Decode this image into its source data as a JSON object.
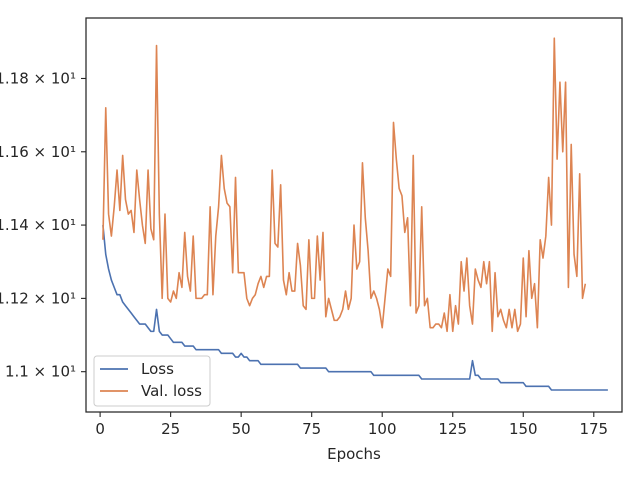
{
  "chart_data": {
    "type": "line",
    "title": "",
    "xlabel": "Epochs",
    "ylabel": "",
    "xlim": [
      -5,
      185
    ],
    "ylim": [
      10.89,
      11.965
    ],
    "grid": false,
    "legend_position": "bottom-left",
    "x_ticks": [
      0,
      25,
      50,
      75,
      100,
      125,
      150,
      175
    ],
    "x_tick_labels": [
      "0",
      "25",
      "50",
      "75",
      "100",
      "125",
      "150",
      "175"
    ],
    "y_ticks": [
      11.0,
      11.2,
      11.4,
      11.6,
      11.8
    ],
    "y_tick_labels": [
      "1.1 × 10¹",
      "1.12 × 10¹",
      "1.14 × 10¹",
      "1.16 × 10¹",
      "1.18 × 10¹"
    ],
    "series": [
      {
        "name": "Loss",
        "color": "#4c72b0",
        "x_start": 1,
        "x_step": 1,
        "values": [
          11.4,
          11.32,
          11.28,
          11.25,
          11.23,
          11.21,
          11.21,
          11.19,
          11.18,
          11.17,
          11.16,
          11.15,
          11.14,
          11.13,
          11.13,
          11.13,
          11.12,
          11.11,
          11.11,
          11.17,
          11.11,
          11.1,
          11.1,
          11.1,
          11.09,
          11.08,
          11.08,
          11.08,
          11.08,
          11.07,
          11.07,
          11.07,
          11.07,
          11.06,
          11.06,
          11.06,
          11.06,
          11.06,
          11.06,
          11.06,
          11.06,
          11.06,
          11.05,
          11.05,
          11.05,
          11.05,
          11.05,
          11.04,
          11.04,
          11.05,
          11.04,
          11.04,
          11.03,
          11.03,
          11.03,
          11.03,
          11.02,
          11.02,
          11.02,
          11.02,
          11.02,
          11.02,
          11.02,
          11.02,
          11.02,
          11.02,
          11.02,
          11.02,
          11.02,
          11.02,
          11.01,
          11.01,
          11.01,
          11.01,
          11.01,
          11.01,
          11.01,
          11.01,
          11.01,
          11.01,
          11.0,
          11.0,
          11.0,
          11.0,
          11.0,
          11.0,
          11.0,
          11.0,
          11.0,
          11.0,
          11.0,
          11.0,
          11.0,
          11.0,
          11.0,
          11.0,
          10.99,
          10.99,
          10.99,
          10.99,
          10.99,
          10.99,
          10.99,
          10.99,
          10.99,
          10.99,
          10.99,
          10.99,
          10.99,
          10.99,
          10.99,
          10.99,
          10.99,
          10.98,
          10.98,
          10.98,
          10.98,
          10.98,
          10.98,
          10.98,
          10.98,
          10.98,
          10.98,
          10.98,
          10.98,
          10.98,
          10.98,
          10.98,
          10.98,
          10.98,
          10.98,
          11.03,
          10.99,
          10.99,
          10.98,
          10.98,
          10.98,
          10.98,
          10.98,
          10.98,
          10.98,
          10.97,
          10.97,
          10.97,
          10.97,
          10.97,
          10.97,
          10.97,
          10.97,
          10.97,
          10.96,
          10.96,
          10.96,
          10.96,
          10.96,
          10.96,
          10.96,
          10.96,
          10.96,
          10.95,
          10.95,
          10.95,
          10.95,
          10.95,
          10.95,
          10.95,
          10.95,
          10.95,
          10.95,
          10.95,
          10.95,
          10.95,
          10.95,
          10.95,
          10.95,
          10.95,
          10.95,
          10.95,
          10.95,
          10.95
        ]
      },
      {
        "name": "Val. loss",
        "color": "#dd8452",
        "x_start": 1,
        "x_step": 1,
        "values": [
          11.36,
          11.72,
          11.43,
          11.37,
          11.45,
          11.55,
          11.44,
          11.59,
          11.47,
          11.43,
          11.44,
          11.38,
          11.55,
          11.47,
          11.4,
          11.35,
          11.55,
          11.39,
          11.36,
          11.89,
          11.43,
          11.2,
          11.43,
          11.2,
          11.19,
          11.22,
          11.2,
          11.27,
          11.23,
          11.38,
          11.26,
          11.22,
          11.37,
          11.2,
          11.2,
          11.2,
          11.21,
          11.21,
          11.45,
          11.21,
          11.37,
          11.45,
          11.59,
          11.5,
          11.46,
          11.45,
          11.27,
          11.53,
          11.27,
          11.27,
          11.27,
          11.2,
          11.18,
          11.2,
          11.21,
          11.24,
          11.26,
          11.23,
          11.26,
          11.26,
          11.55,
          11.35,
          11.34,
          11.51,
          11.25,
          11.21,
          11.27,
          11.22,
          11.22,
          11.35,
          11.29,
          11.18,
          11.17,
          11.36,
          11.2,
          11.2,
          11.37,
          11.25,
          11.38,
          11.15,
          11.2,
          11.17,
          11.14,
          11.14,
          11.15,
          11.17,
          11.22,
          11.17,
          11.2,
          11.4,
          11.28,
          11.3,
          11.57,
          11.42,
          11.33,
          11.2,
          11.22,
          11.2,
          11.17,
          11.12,
          11.2,
          11.28,
          11.26,
          11.68,
          11.58,
          11.5,
          11.48,
          11.38,
          11.42,
          11.18,
          11.59,
          11.16,
          11.18,
          11.45,
          11.18,
          11.2,
          11.12,
          11.12,
          11.13,
          11.13,
          11.12,
          11.16,
          11.11,
          11.21,
          11.11,
          11.18,
          11.13,
          11.3,
          11.22,
          11.31,
          11.18,
          11.13,
          11.28,
          11.25,
          11.23,
          11.3,
          11.24,
          11.3,
          11.11,
          11.27,
          11.15,
          11.17,
          11.14,
          11.12,
          11.17,
          11.12,
          11.17,
          11.11,
          11.13,
          11.31,
          11.15,
          11.33,
          11.2,
          11.24,
          11.12,
          11.36,
          11.31,
          11.37,
          11.53,
          11.4,
          11.91,
          11.58,
          11.79,
          11.6,
          11.79,
          11.23,
          11.62,
          11.32,
          11.26,
          11.54,
          11.2,
          11.24
        ]
      }
    ]
  }
}
